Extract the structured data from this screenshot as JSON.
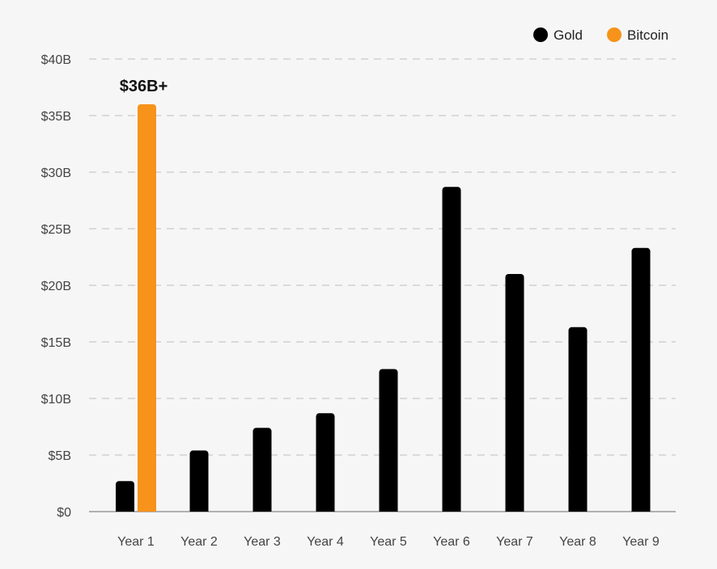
{
  "chart_data": {
    "type": "bar",
    "title": "",
    "xlabel": "",
    "ylabel": "",
    "categories": [
      "Year 1",
      "Year 2",
      "Year 3",
      "Year 4",
      "Year 5",
      "Year 6",
      "Year 7",
      "Year 8",
      "Year 9"
    ],
    "series": [
      {
        "name": "Gold",
        "color": "#000000",
        "values": [
          2.7,
          5.4,
          7.4,
          8.7,
          12.6,
          28.7,
          21.0,
          16.3,
          23.3
        ]
      },
      {
        "name": "Bitcoin",
        "color": "#f7931a",
        "values": [
          36,
          null,
          null,
          null,
          null,
          null,
          null,
          null,
          null
        ]
      }
    ],
    "ylim": [
      0,
      40
    ],
    "yticks": [
      0,
      5,
      10,
      15,
      20,
      25,
      30,
      35,
      40
    ],
    "ytick_labels": [
      "$0",
      "$5B",
      "$10B",
      "$15B",
      "$20B",
      "$25B",
      "$30B",
      "$35B",
      "$40B"
    ],
    "grid": "horizontal-dashed",
    "legend": {
      "position": "top-right",
      "entries": [
        "Gold",
        "Bitcoin"
      ]
    },
    "annotations": [
      {
        "text": "$36B+",
        "series": "Bitcoin",
        "category": "Year 1"
      }
    ]
  }
}
